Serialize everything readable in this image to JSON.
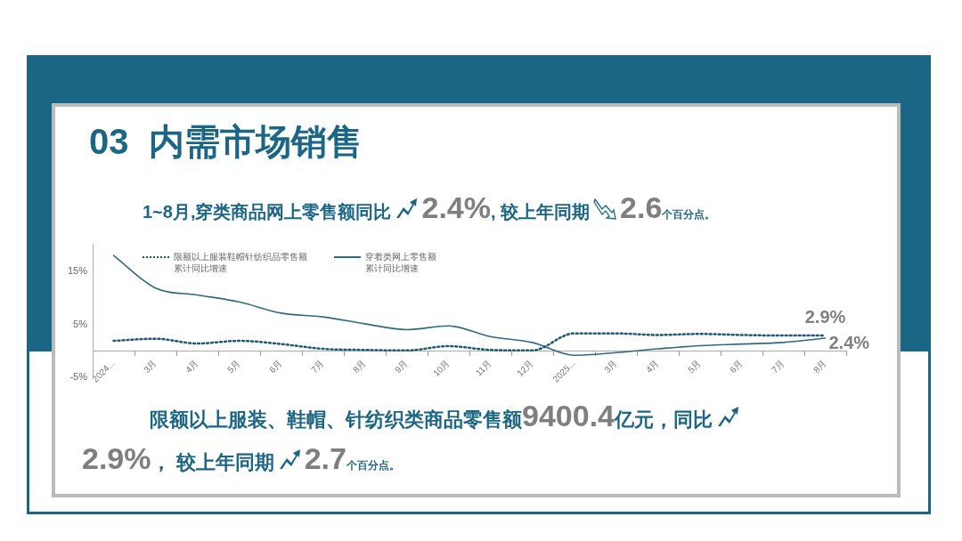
{
  "chart_data": {
    "type": "line",
    "title": "03  内需市场销售",
    "categories": [
      "2024...",
      "3月",
      "4月",
      "5月",
      "6月",
      "7月",
      "8月",
      "9月",
      "10月",
      "11月",
      "12月",
      "2025...",
      "3月",
      "4月",
      "5月",
      "6月",
      "7月",
      "8月"
    ],
    "series": [
      {
        "name": "限额以上服装鞋帽针纺织品零售额累计同比增速",
        "color": "#1f5a74",
        "line_style": "dotted",
        "values": [
          1.9,
          2.3,
          1.4,
          1.9,
          1.3,
          0.4,
          0.2,
          0.1,
          0.9,
          0.2,
          0.1,
          3.3,
          3.3,
          3.0,
          3.2,
          3.0,
          2.9,
          2.9
        ]
      },
      {
        "name": "穿着类网上零售额累计同比增速",
        "color": "#2e6b80",
        "line_style": "solid",
        "values": [
          17.9,
          11.8,
          10.5,
          9.2,
          7.1,
          6.4,
          5.1,
          4.0,
          4.7,
          2.7,
          1.6,
          -0.8,
          -0.3,
          0.4,
          1.0,
          1.3,
          1.6,
          2.4
        ]
      }
    ],
    "ylim": [
      -5,
      20
    ],
    "yticks": [
      {
        "value": -5,
        "label": "-5%"
      },
      {
        "value": 5,
        "label": "5%"
      },
      {
        "value": 15,
        "label": "15%"
      }
    ],
    "grid": false,
    "legend": "top left",
    "marker": "none",
    "annotations": [
      "2.9%",
      "2.4%",
      "1~8月,穿类商品网上零售额同比",
      "2.4%",
      ", 较上年同期",
      "2.6",
      "个百分点。",
      "限额以上服装、鞋帽、针纺织类商品零售额",
      "9400.4",
      "亿元，同比",
      "2.9%",
      "，  较上年同期",
      "2.7",
      "个百分点。"
    ]
  }
}
